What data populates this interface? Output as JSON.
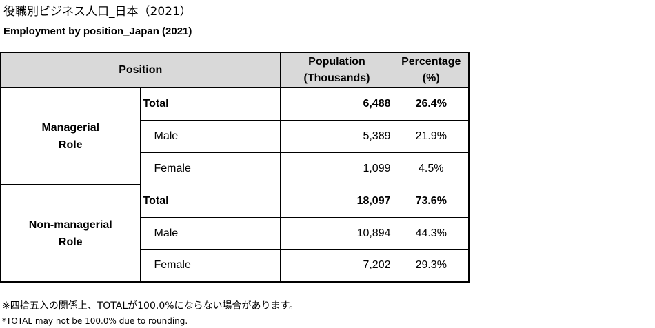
{
  "title_jp": "役職別ビジネス人口_日本（2021）",
  "title_en": "Employment by position_Japan (2021)",
  "table": {
    "headers": {
      "position": "Position",
      "population_line1": "Population",
      "population_line2": "(Thousands)",
      "percentage_line1": "Percentage",
      "percentage_line2": "(%)"
    },
    "groups": [
      {
        "category_line1": "Managerial",
        "category_line2": "Role",
        "rows": [
          {
            "label": "Total",
            "population": "6,488",
            "percentage": "26.4%"
          },
          {
            "label": "Male",
            "population": "5,389",
            "percentage": "21.9%"
          },
          {
            "label": "Female",
            "population": "1,099",
            "percentage": "4.5%"
          }
        ]
      },
      {
        "category_line1": "Non-managerial",
        "category_line2": "Role",
        "rows": [
          {
            "label": "Total",
            "population": "18,097",
            "percentage": "73.6%"
          },
          {
            "label": "Male",
            "population": "10,894",
            "percentage": "44.3%"
          },
          {
            "label": "Female",
            "population": "7,202",
            "percentage": "29.3%"
          }
        ]
      }
    ]
  },
  "note_jp": "※四捨五入の関係上、TOTALが100.0%にならない場合があります。",
  "note_en": "*TOTAL may not be 100.0% due to rounding."
}
